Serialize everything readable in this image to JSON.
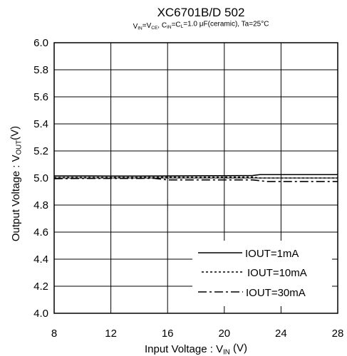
{
  "chart_data": {
    "type": "line",
    "title": "XC6701B/D 502",
    "subtitle": {
      "parts": [
        {
          "t": "V"
        },
        {
          "t": "IN",
          "sub": true
        },
        {
          "t": "=V"
        },
        {
          "t": "CE",
          "sub": true
        },
        {
          "t": ", C"
        },
        {
          "t": "IN",
          "sub": true
        },
        {
          "t": "=C"
        },
        {
          "t": "L",
          "sub": true
        },
        {
          "t": "=1.0 μF(ceramic), Ta=25°C"
        }
      ]
    },
    "xlabel": {
      "parts": [
        {
          "t": "Input Voltage : V"
        },
        {
          "t": "IN",
          "sub": true
        },
        {
          "t": " (V)"
        }
      ]
    },
    "ylabel": {
      "parts": [
        {
          "t": "Output Voltage : V"
        },
        {
          "t": "OUT",
          "sub": true
        },
        {
          "t": "(V)"
        }
      ]
    },
    "xlim": [
      8,
      28
    ],
    "ylim": [
      4.0,
      6.0
    ],
    "xticks": [
      8,
      12,
      16,
      20,
      24,
      28
    ],
    "yticks": [
      "4.0",
      "4.2",
      "4.4",
      "4.6",
      "4.8",
      "5.0",
      "5.2",
      "5.4",
      "5.6",
      "5.8",
      "6.0"
    ],
    "grid": true,
    "legend_position": "bottom-right",
    "series": [
      {
        "name": "IOUT=1mA",
        "style": "solid",
        "x": [
          8,
          10,
          12,
          14,
          16,
          18,
          20,
          22,
          22.5,
          24,
          26,
          28
        ],
        "y": [
          5.015,
          5.015,
          5.014,
          5.014,
          5.015,
          5.016,
          5.017,
          5.018,
          5.025,
          5.025,
          5.025,
          5.025
        ]
      },
      {
        "name": "IOUT=10mA",
        "style": "dotted",
        "x": [
          8,
          10,
          12,
          14,
          16,
          18,
          20,
          22,
          22.5,
          24,
          26,
          28
        ],
        "y": [
          5.003,
          5.004,
          5.004,
          5.004,
          5.005,
          5.005,
          5.006,
          5.007,
          5.0,
          5.0,
          5.0,
          5.0
        ]
      },
      {
        "name": "IOUT=30mA",
        "style": "dashdot",
        "x": [
          8,
          10,
          12,
          14,
          15,
          16,
          18,
          20,
          22,
          23,
          24,
          26,
          28
        ],
        "y": [
          4.995,
          4.997,
          4.997,
          4.997,
          4.998,
          4.986,
          4.986,
          4.986,
          4.986,
          4.974,
          4.974,
          4.974,
          4.974
        ]
      }
    ]
  }
}
